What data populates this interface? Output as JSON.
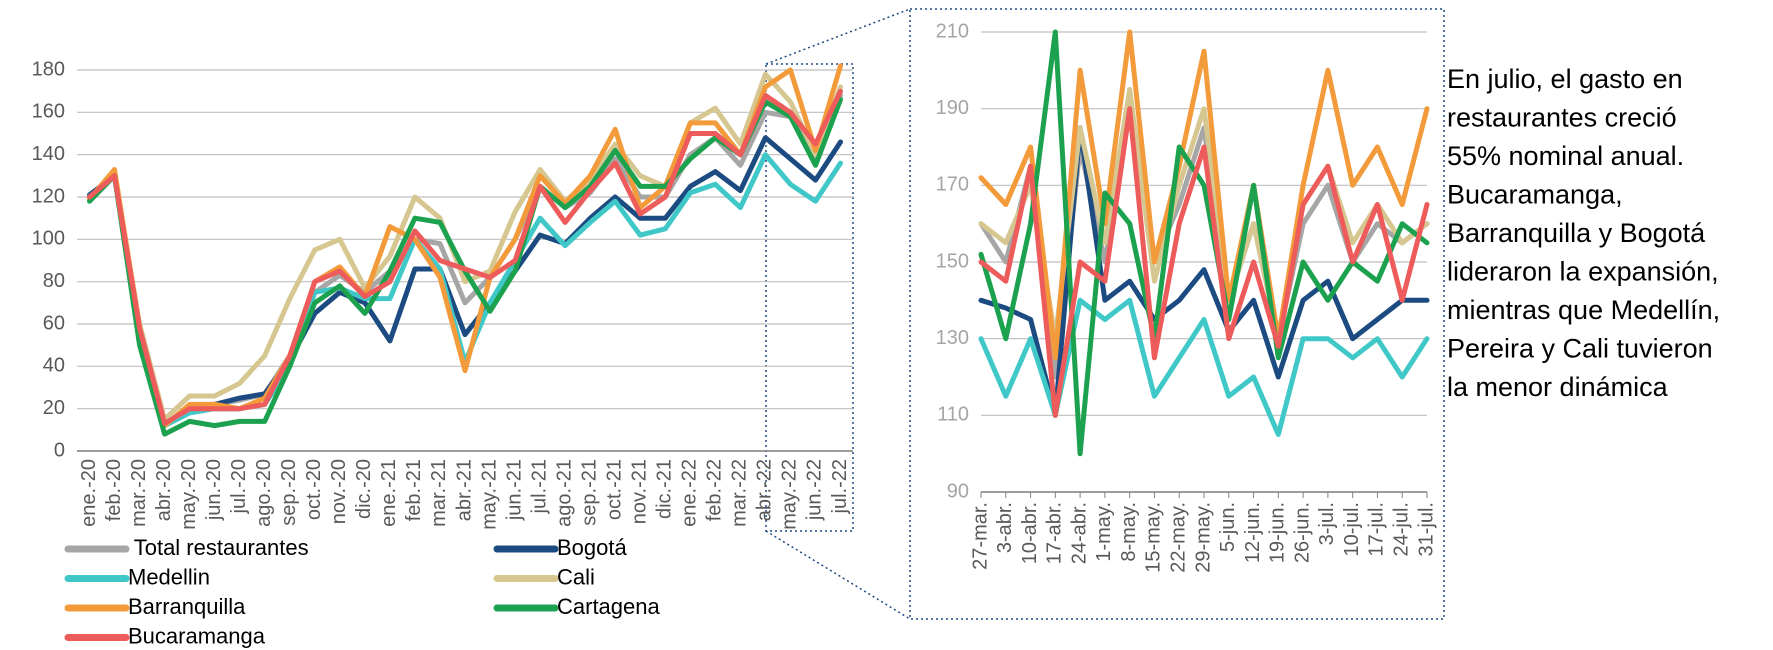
{
  "chart_data": [
    {
      "type": "line",
      "categories": [
        "ene.-20",
        "feb.-20",
        "mar.-20",
        "abr.-20",
        "may.-20",
        "jun.-20",
        "jul.-20",
        "ago.-20",
        "sep.-20",
        "oct.-20",
        "nov.-20",
        "dic.-20",
        "ene.-21",
        "feb.-21",
        "mar.-21",
        "abr.-21",
        "may.-21",
        "jun.-21",
        "jul.-21",
        "ago.-21",
        "sep.-21",
        "oct.-21",
        "nov.-21",
        "dic.-21",
        "ene.-22",
        "feb.-22",
        "mar.-22",
        "abr.-22",
        "may.-22",
        "jun.-22",
        "jul.-22"
      ],
      "series": [
        {
          "name": " Total restaurantes",
          "color": "#a6a6a6",
          "values": [
            120,
            130,
            58,
            13,
            20,
            22,
            24,
            27,
            45,
            75,
            83,
            75,
            85,
            100,
            98,
            70,
            82,
            100,
            125,
            115,
            122,
            138,
            120,
            120,
            140,
            148,
            135,
            160,
            158,
            138,
            168
          ]
        },
        {
          "name": "Bogotá",
          "color": "#1b4b80",
          "values": [
            121,
            130,
            55,
            12,
            20,
            22,
            25,
            27,
            43,
            65,
            75,
            70,
            52,
            86,
            86,
            55,
            70,
            85,
            102,
            98,
            110,
            120,
            110,
            110,
            125,
            132,
            123,
            148,
            138,
            128,
            146
          ]
        },
        {
          "name": "Medellin",
          "color": "#40c8c8",
          "values": [
            120,
            130,
            55,
            12,
            18,
            20,
            20,
            22,
            40,
            75,
            77,
            72,
            72,
            100,
            86,
            42,
            70,
            90,
            110,
            97,
            108,
            118,
            102,
            105,
            122,
            126,
            115,
            140,
            126,
            118,
            136
          ]
        },
        {
          "name": "Cali",
          "color": "#d6c690",
          "values": [
            120,
            130,
            60,
            15,
            26,
            26,
            32,
            45,
            72,
            95,
            100,
            77,
            92,
            120,
            110,
            80,
            85,
            113,
            133,
            118,
            128,
            145,
            130,
            125,
            155,
            162,
            145,
            178,
            165,
            140,
            172
          ]
        },
        {
          "name": "Barranquilla",
          "color": "#f39a3b",
          "values": [
            119,
            133,
            58,
            12,
            22,
            22,
            20,
            25,
            45,
            80,
            87,
            73,
            106,
            100,
            82,
            38,
            82,
            100,
            130,
            117,
            130,
            152,
            115,
            125,
            155,
            155,
            140,
            172,
            180,
            142,
            182
          ]
        },
        {
          "name": "Cartagena",
          "color": "#1ca24f",
          "values": [
            118,
            130,
            50,
            8,
            14,
            12,
            14,
            14,
            40,
            70,
            78,
            65,
            85,
            110,
            108,
            85,
            66,
            85,
            125,
            115,
            125,
            142,
            125,
            125,
            138,
            148,
            140,
            165,
            158,
            135,
            166
          ]
        },
        {
          "name": "Bucaramanga",
          "color": "#ee5b5b",
          "values": [
            120,
            130,
            58,
            13,
            20,
            20,
            20,
            22,
            45,
            80,
            85,
            73,
            80,
            104,
            90,
            86,
            82,
            90,
            125,
            108,
            123,
            136,
            112,
            120,
            150,
            150,
            140,
            168,
            160,
            145,
            170
          ]
        }
      ],
      "ylim": [
        0,
        180
      ],
      "yticks": [
        0,
        20,
        40,
        60,
        80,
        100,
        120,
        140,
        160,
        180
      ],
      "grid": true
    },
    {
      "type": "line",
      "x": [
        0,
        7,
        14,
        21,
        28,
        35,
        42,
        49,
        56,
        63,
        70,
        77,
        84,
        91,
        98,
        105,
        112,
        119,
        126
      ],
      "series": [
        {
          "color": "#a6a6a6",
          "values": [
            160,
            150,
            175,
            120,
            180,
            150,
            190,
            150,
            165,
            185,
            140,
            160,
            130,
            160,
            170,
            150,
            160,
            155,
            160
          ]
        },
        {
          "color": "#1b4b80",
          "values": [
            140,
            138,
            135,
            110,
            185,
            140,
            145,
            135,
            140,
            148,
            132,
            140,
            120,
            140,
            145,
            130,
            135,
            140,
            140
          ]
        },
        {
          "color": "#40c8c8",
          "values": [
            130,
            115,
            130,
            110,
            140,
            135,
            140,
            115,
            125,
            135,
            115,
            120,
            105,
            130,
            130,
            125,
            130,
            120,
            130
          ]
        },
        {
          "color": "#d6c690",
          "values": [
            160,
            155,
            170,
            130,
            185,
            155,
            195,
            145,
            170,
            190,
            140,
            160,
            130,
            165,
            175,
            155,
            165,
            155,
            160
          ]
        },
        {
          "color": "#f39a3b",
          "values": [
            172,
            165,
            180,
            125,
            200,
            160,
            210,
            150,
            175,
            205,
            140,
            170,
            130,
            170,
            200,
            170,
            180,
            165,
            190
          ]
        },
        {
          "color": "#1ca24f",
          "values": [
            152,
            130,
            160,
            210,
            100,
            168,
            160,
            130,
            180,
            170,
            135,
            170,
            125,
            150,
            140,
            150,
            145,
            160,
            155
          ]
        },
        {
          "color": "#ee5b5b",
          "values": [
            150,
            145,
            175,
            110,
            150,
            145,
            190,
            125,
            160,
            180,
            130,
            150,
            128,
            165,
            175,
            150,
            165,
            140,
            165
          ]
        }
      ],
      "xlim": [
        0,
        126
      ],
      "xticks": [
        {
          "value": 0,
          "label": "27-mar."
        },
        {
          "value": 7,
          "label": "3-abr."
        },
        {
          "value": 14,
          "label": "10-abr."
        },
        {
          "value": 21,
          "label": "17-abr."
        },
        {
          "value": 28,
          "label": "24-abr."
        },
        {
          "value": 35,
          "label": "1-may."
        },
        {
          "value": 42,
          "label": "8-may."
        },
        {
          "value": 49,
          "label": "15-may."
        },
        {
          "value": 56,
          "label": "22-may."
        },
        {
          "value": 63,
          "label": "29-may."
        },
        {
          "value": 70,
          "label": "5-jun."
        },
        {
          "value": 77,
          "label": "12-jun."
        },
        {
          "value": 84,
          "label": "19-jun."
        },
        {
          "value": 91,
          "label": "26-jun."
        },
        {
          "value": 98,
          "label": "3-jul."
        },
        {
          "value": 105,
          "label": "10-jul."
        },
        {
          "value": 112,
          "label": "17-jul."
        },
        {
          "value": 119,
          "label": "24-jul."
        },
        {
          "value": 126,
          "label": "31-jul."
        }
      ],
      "ylim": [
        90,
        210
      ],
      "yticks": [
        90,
        110,
        130,
        150,
        170,
        190,
        210
      ],
      "grid": true
    }
  ],
  "text": {
    "lines": [
      "En julio, el gasto en",
      "restaurantes creció",
      "55% nominal anual.",
      "Bucaramanga,",
      "Barranquilla y Bogotá",
      "lideraron la expansión,",
      "mientras que Medellín,",
      "Pereira y Cali tuvieron",
      "la menor dinámica"
    ]
  }
}
